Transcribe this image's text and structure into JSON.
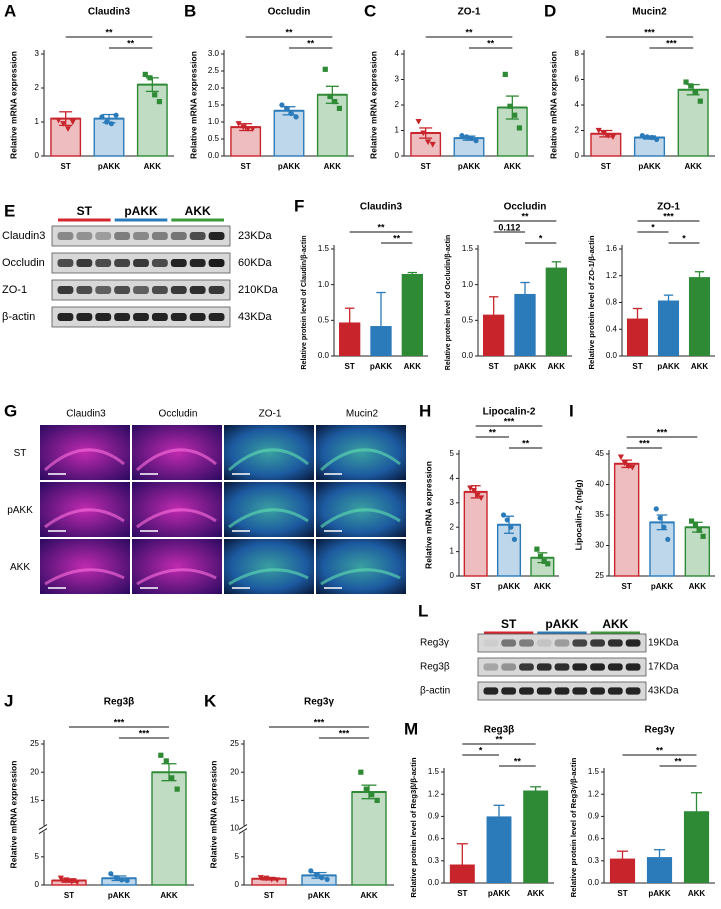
{
  "chart_data": [
    {
      "type": "bar",
      "letter": "A",
      "title": "Claudin3",
      "y_label": "Relative mRNA expression",
      "style": "outline",
      "categories": [
        "ST",
        "pAKK",
        "AKK"
      ],
      "colors": [
        "#c8242b",
        "#2b7bba",
        "#2e8a35"
      ],
      "values": [
        1.1,
        1.1,
        2.1
      ],
      "errors": [
        0.2,
        0.12,
        0.2
      ],
      "points": [
        [
          1.05,
          0.95,
          0.8,
          1.0
        ],
        [
          1.15,
          1.0,
          0.95,
          1.2
        ],
        [
          2.4,
          2.3,
          1.8,
          1.6
        ]
      ],
      "ylim": [
        0,
        3
      ],
      "yticks": [
        0,
        1,
        2,
        3
      ],
      "annotations": [
        {
          "label": "**",
          "between": [
            1,
            2
          ]
        },
        {
          "label": "**",
          "between": [
            0,
            2
          ]
        }
      ]
    },
    {
      "type": "bar",
      "letter": "B",
      "title": "Occludin",
      "y_label": "Relative mRNA expression",
      "style": "outline",
      "categories": [
        "ST",
        "pAKK",
        "AKK"
      ],
      "colors": [
        "#c8242b",
        "#2b7bba",
        "#2e8a35"
      ],
      "values": [
        0.85,
        1.33,
        1.8
      ],
      "errors": [
        0.1,
        0.12,
        0.25
      ],
      "points": [
        [
          0.95,
          0.85,
          0.8,
          0.8
        ],
        [
          1.5,
          1.4,
          1.25,
          1.15
        ],
        [
          2.55,
          1.75,
          1.6,
          1.4
        ]
      ],
      "ylim": [
        0,
        3
      ],
      "yticks": [
        {
          "value": 0,
          "label": "0.0"
        },
        0.5,
        {
          "value": 1,
          "label": "1.0"
        },
        1.5,
        {
          "value": 2,
          "label": "2.0"
        },
        2.5,
        {
          "value": 3,
          "label": "3.0"
        }
      ],
      "annotations": [
        {
          "label": "**",
          "between": [
            1,
            2
          ]
        },
        {
          "label": "**",
          "between": [
            0,
            2
          ]
        }
      ]
    },
    {
      "type": "bar",
      "letter": "C",
      "title": "ZO-1",
      "y_label": "Relative mRNA expression",
      "style": "outline",
      "categories": [
        "ST",
        "pAKK",
        "AKK"
      ],
      "colors": [
        "#c8242b",
        "#2b7bba",
        "#2e8a35"
      ],
      "values": [
        0.9,
        0.7,
        1.9
      ],
      "errors": [
        0.2,
        0.08,
        0.45
      ],
      "points": [
        [
          1.35,
          0.9,
          0.55,
          0.45
        ],
        [
          0.8,
          0.75,
          0.7,
          0.6
        ],
        [
          3.2,
          1.95,
          1.6,
          1.1
        ]
      ],
      "ylim": [
        0,
        4
      ],
      "yticks": [
        0,
        1,
        2,
        3,
        4
      ],
      "annotations": [
        {
          "label": "**",
          "between": [
            1,
            2
          ]
        },
        {
          "label": "**",
          "between": [
            0,
            2
          ]
        }
      ]
    },
    {
      "type": "bar",
      "letter": "D",
      "title": "Mucin2",
      "y_label": "Relative mRNA expression",
      "style": "outline",
      "categories": [
        "ST",
        "pAKK",
        "AKK"
      ],
      "colors": [
        "#c8242b",
        "#2b7bba",
        "#2e8a35"
      ],
      "values": [
        1.75,
        1.45,
        5.2
      ],
      "errors": [
        0.25,
        0.12,
        0.4
      ],
      "points": [
        [
          2.0,
          1.8,
          1.6,
          1.5
        ],
        [
          1.6,
          1.5,
          1.45,
          1.3
        ],
        [
          5.8,
          5.5,
          5.0,
          4.3
        ]
      ],
      "ylim": [
        0,
        8
      ],
      "yticks": [
        0,
        2,
        4,
        6,
        8
      ],
      "annotations": [
        {
          "label": "***",
          "between": [
            1,
            2
          ]
        },
        {
          "label": "***",
          "between": [
            0,
            2
          ]
        }
      ]
    },
    {
      "type": "bar",
      "letter": "F",
      "title": "Claudin3",
      "y_label": "Relative protein level of Claudin/β-actin",
      "style": "solid",
      "categories": [
        "ST",
        "pAKK",
        "AKK"
      ],
      "colors": [
        "#c8242b",
        "#2b7bba",
        "#2e8a35"
      ],
      "values": [
        0.47,
        0.42,
        1.15
      ],
      "errors": [
        0.2,
        0.47,
        0.02
      ],
      "ylim": [
        0,
        1.5
      ],
      "yticks": [
        {
          "value": 0,
          "label": "0.0"
        },
        0.5,
        {
          "value": 1,
          "label": "1.0"
        },
        1.5
      ],
      "annotations": [
        {
          "label": "**",
          "between": [
            1,
            2
          ]
        },
        {
          "label": "**",
          "between": [
            0,
            2
          ]
        }
      ]
    },
    {
      "type": "bar",
      "title": "Occludin",
      "y_label": "Relative protein level of Occludin/β-actin",
      "style": "solid",
      "categories": [
        "ST",
        "pAKK",
        "AKK"
      ],
      "colors": [
        "#c8242b",
        "#2b7bba",
        "#2e8a35"
      ],
      "values": [
        0.58,
        0.87,
        1.24
      ],
      "errors": [
        0.25,
        0.16,
        0.08
      ],
      "ylim": [
        0,
        1.5
      ],
      "yticks": [
        {
          "value": 0,
          "label": "0.0"
        },
        0.5,
        {
          "value": 1,
          "label": "1.0"
        },
        1.5
      ],
      "annotations": [
        {
          "label": "*",
          "between": [
            1,
            2
          ]
        },
        {
          "label": "0.112",
          "between": [
            0,
            1
          ]
        },
        {
          "label": "**",
          "between": [
            0,
            2
          ]
        }
      ]
    },
    {
      "type": "bar",
      "title": "ZO-1",
      "y_label": "Relative protein level of ZO-1/β-actin",
      "style": "solid",
      "categories": [
        "ST",
        "pAKK",
        "AKK"
      ],
      "colors": [
        "#c8242b",
        "#2b7bba",
        "#2e8a35"
      ],
      "values": [
        0.56,
        0.83,
        1.18
      ],
      "errors": [
        0.15,
        0.08,
        0.08
      ],
      "ylim": [
        0,
        1.6
      ],
      "yticks": [
        {
          "value": 0,
          "label": "0.0"
        },
        0.4,
        0.8,
        1.2,
        1.6
      ],
      "annotations": [
        {
          "label": "*",
          "between": [
            1,
            2
          ]
        },
        {
          "label": "*",
          "between": [
            0,
            1
          ]
        },
        {
          "label": "***",
          "between": [
            0,
            2
          ]
        }
      ]
    },
    {
      "type": "bar",
      "letter": "H",
      "title": "Lipocalin-2",
      "y_label": "Relative mRNA expression",
      "style": "outline",
      "categories": [
        "ST",
        "pAKK",
        "AKK"
      ],
      "colors": [
        "#c8242b",
        "#2b7bba",
        "#2e8a35"
      ],
      "values": [
        3.45,
        2.1,
        0.75
      ],
      "errors": [
        0.25,
        0.35,
        0.2
      ],
      "points": [
        [
          3.6,
          3.5,
          3.3,
          3.2
        ],
        [
          2.5,
          2.3,
          2.0,
          1.5
        ],
        [
          1.1,
          0.8,
          0.6,
          0.5
        ]
      ],
      "ylim": [
        0,
        5
      ],
      "yticks": [
        0,
        1,
        2,
        3,
        4,
        5
      ],
      "annotations": [
        {
          "label": "**",
          "between": [
            1,
            2
          ]
        },
        {
          "label": "**",
          "between": [
            0,
            1
          ]
        },
        {
          "label": "***",
          "between": [
            0,
            2
          ]
        }
      ]
    },
    {
      "type": "bar",
      "letter": "I",
      "y_label": "Lipocalin-2 (ng/g)",
      "style": "outline",
      "categories": [
        "ST",
        "pAKK",
        "AKK"
      ],
      "colors": [
        "#c8242b",
        "#2b7bba",
        "#2e8a35"
      ],
      "values": [
        43.4,
        33.8,
        33
      ],
      "errors": [
        0.6,
        1.2,
        0.8
      ],
      "points": [
        [
          44.5,
          43.5,
          43,
          42.8
        ],
        [
          36,
          34.5,
          33,
          31
        ],
        [
          34,
          33.5,
          32.5,
          31.5
        ]
      ],
      "ylim": [
        25,
        45
      ],
      "yticks": [
        25,
        30,
        35,
        40,
        45
      ],
      "annotations": [
        {
          "label": "***",
          "between": [
            0,
            1
          ]
        },
        {
          "label": "***",
          "between": [
            0,
            2
          ]
        }
      ]
    },
    {
      "type": "bar",
      "letter": "J",
      "title": "Reg3β",
      "y_label": "Relative mRNA expression",
      "style": "outline",
      "broken_axis": true,
      "categories": [
        "ST",
        "pAKK",
        "AKK"
      ],
      "colors": [
        "#c8242b",
        "#2b7bba",
        "#2e8a35"
      ],
      "values": [
        0.8,
        1.2,
        20
      ],
      "errors": [
        0.3,
        0.4,
        1.5
      ],
      "points": [
        [
          1.2,
          0.9,
          0.6,
          0.5
        ],
        [
          2.0,
          1.3,
          0.9,
          0.8
        ],
        [
          23,
          22,
          19,
          17
        ]
      ],
      "ylim": [
        0,
        25
      ],
      "yticks": [
        0,
        5,
        15,
        20,
        25
      ],
      "annotations": [
        {
          "label": "***",
          "between": [
            1,
            2
          ]
        },
        {
          "label": "***",
          "between": [
            0,
            2
          ]
        }
      ]
    },
    {
      "type": "bar",
      "letter": "K",
      "title": "Reg3γ",
      "y_label": "Relative mRNA expression",
      "style": "outline",
      "broken_axis": true,
      "categories": [
        "ST",
        "pAKK",
        "AKK"
      ],
      "colors": [
        "#c8242b",
        "#2b7bba",
        "#2e8a35"
      ],
      "values": [
        1.1,
        1.7,
        16.5
      ],
      "errors": [
        0.2,
        0.5,
        1.2
      ],
      "points": [
        [
          1.3,
          1.2,
          1.0,
          0.9
        ],
        [
          2.5,
          1.8,
          1.3,
          1.0
        ],
        [
          20,
          17,
          16,
          15
        ]
      ],
      "ylim": [
        0,
        25
      ],
      "yticks": [
        0,
        5,
        10,
        15,
        20,
        25
      ],
      "annotations": [
        {
          "label": "***",
          "between": [
            1,
            2
          ]
        },
        {
          "label": "***",
          "between": [
            0,
            2
          ]
        }
      ]
    },
    {
      "type": "bar",
      "letter": "M",
      "title": "Reg3β",
      "y_label": "Relative protein level of Reg3β/β-actin",
      "style": "solid",
      "categories": [
        "ST",
        "pAKK",
        "AKK"
      ],
      "colors": [
        "#c8242b",
        "#2b7bba",
        "#2e8a35"
      ],
      "values": [
        0.25,
        0.9,
        1.25
      ],
      "errors": [
        0.28,
        0.15,
        0.05
      ],
      "ylim": [
        0,
        1.5
      ],
      "yticks": [
        {
          "value": 0,
          "label": "0.0"
        },
        0.3,
        0.6,
        0.9,
        1.2,
        1.5
      ],
      "annotations": [
        {
          "label": "**",
          "between": [
            1,
            2
          ]
        },
        {
          "label": "*",
          "between": [
            0,
            1
          ]
        },
        {
          "label": "**",
          "between": [
            0,
            2
          ]
        }
      ]
    },
    {
      "type": "bar",
      "title": "Reg3γ",
      "y_label": "Relative protein level of Reg3γ/β-actin",
      "style": "solid",
      "categories": [
        "ST",
        "pAKK",
        "AKK"
      ],
      "colors": [
        "#c8242b",
        "#2b7bba",
        "#2e8a35"
      ],
      "values": [
        0.33,
        0.35,
        0.97
      ],
      "errors": [
        0.1,
        0.1,
        0.25
      ],
      "ylim": [
        0,
        1.5
      ],
      "yticks": [
        {
          "value": 0,
          "label": "0.0"
        },
        0.3,
        0.6,
        0.9,
        1.2,
        1.5
      ],
      "annotations": [
        {
          "label": "**",
          "between": [
            1,
            2
          ]
        },
        {
          "label": "**",
          "between": [
            0,
            2
          ]
        }
      ]
    }
  ],
  "blots": [
    {
      "letter": "E",
      "groups": [
        "ST",
        "pAKK",
        "AKK"
      ],
      "group_colors": [
        "#d6262e",
        "#2b7bba",
        "#3a9a3c"
      ],
      "rows": [
        {
          "name": "Claudin3",
          "size": "23KDa"
        },
        {
          "name": "Occludin",
          "size": "60KDa"
        },
        {
          "name": "ZO-1",
          "size": "210KDa"
        },
        {
          "name": "β-actin",
          "size": "43KDa"
        }
      ]
    },
    {
      "letter": "L",
      "groups": [
        "ST",
        "pAKK",
        "AKK"
      ],
      "group_colors": [
        "#d6262e",
        "#2b7bba",
        "#3a9a3c"
      ],
      "rows": [
        {
          "name": "Reg3γ",
          "size": "19KDa"
        },
        {
          "name": "Reg3β",
          "size": "17KDa"
        },
        {
          "name": "β-actin",
          "size": "43KDa"
        }
      ]
    }
  ],
  "micrograph": {
    "letter": "G",
    "columns": [
      "Claudin3",
      "Occludin",
      "ZO-1",
      "Mucin2"
    ],
    "rows": [
      "ST",
      "pAKK",
      "AKK"
    ]
  }
}
